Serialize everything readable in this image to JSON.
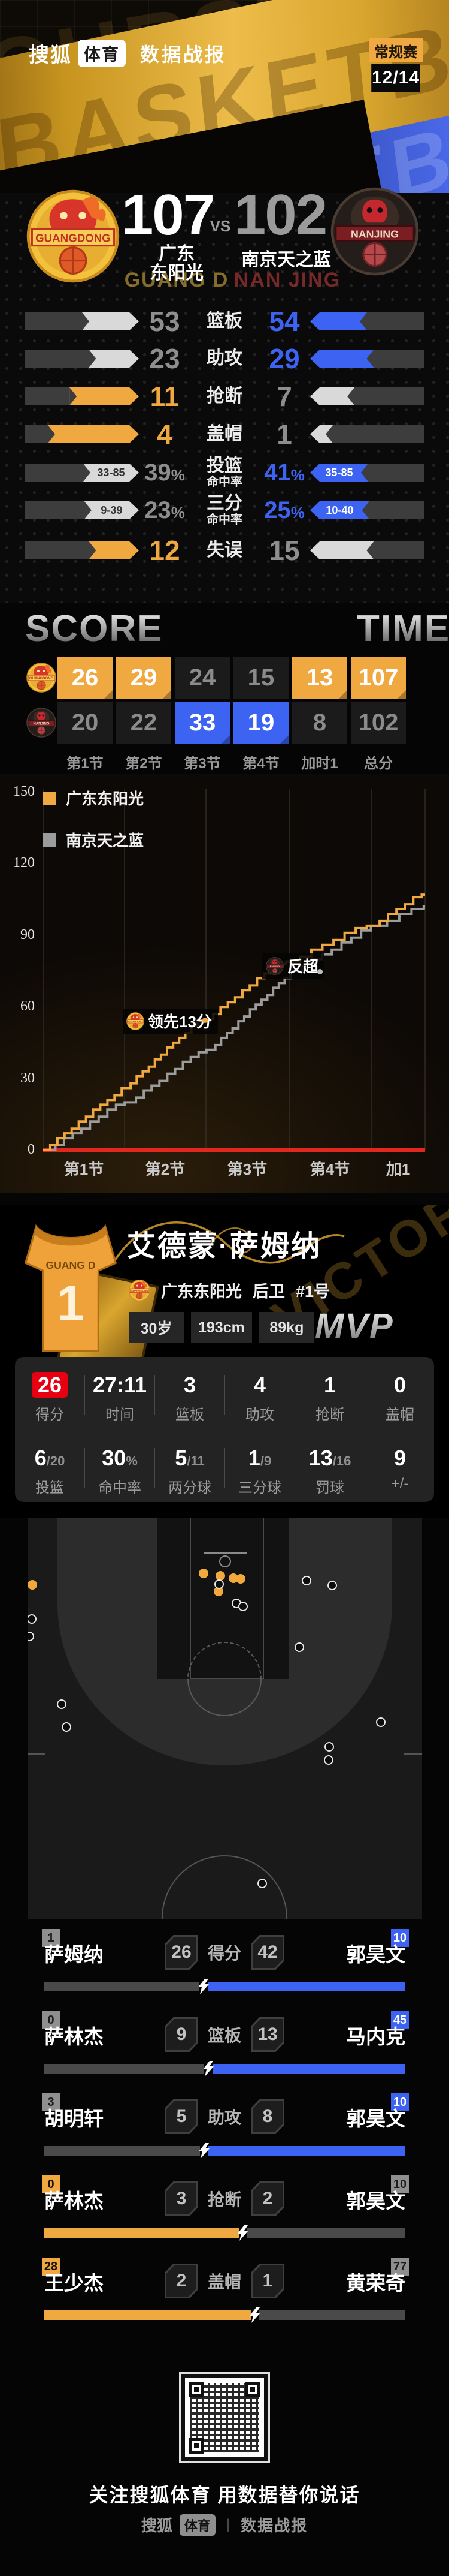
{
  "header": {
    "brand": "搜狐",
    "brand_badge": "体育",
    "title": "数据战报",
    "season_badge": "常规赛",
    "date": "12/14",
    "ribbon_text": "BASKETBALL",
    "ribbon_text_top": "OURSKETB",
    "ribbon_text_blue": "KETBALL"
  },
  "scoreboard": {
    "home": {
      "name_line1": "广东",
      "name_line2": "东阳光",
      "ghost": "GUANG D",
      "score": "107",
      "logo": "gd"
    },
    "away": {
      "name_line1": "南京天之蓝",
      "ghost": "NAN JING",
      "score": "102",
      "logo": "nj"
    },
    "vs": "VS"
  },
  "team_stats": {
    "home_color": "#F0A841",
    "away_color": "#3D63F2",
    "lose_fill": "#D9D9D9",
    "lose_text": "#8E8E8E",
    "rows": [
      {
        "label": "篮板",
        "home": "53",
        "away": "54",
        "home_num": 53,
        "away_num": 54,
        "winner": "away"
      },
      {
        "label": "助攻",
        "home": "23",
        "away": "29",
        "home_num": 23,
        "away_num": 29,
        "winner": "away"
      },
      {
        "label": "抢断",
        "home": "11",
        "away": "7",
        "home_num": 11,
        "away_num": 7,
        "winner": "home"
      },
      {
        "label": "盖帽",
        "home": "4",
        "away": "1",
        "home_num": 4,
        "away_num": 1,
        "winner": "home"
      },
      {
        "label": "投篮",
        "label2": "命中率",
        "home": "39",
        "away": "41",
        "suffix": "%",
        "home_num": 39,
        "away_num": 41,
        "home_sub": "33-85",
        "away_sub": "35-85",
        "winner": "away"
      },
      {
        "label": "三分",
        "label2": "命中率",
        "home": "23",
        "away": "25",
        "suffix": "%",
        "home_num": 23,
        "away_num": 25,
        "home_sub": "9-39",
        "away_sub": "10-40",
        "winner": "away"
      },
      {
        "label": "失误",
        "home": "12",
        "away": "15",
        "home_num": 12,
        "away_num": 15,
        "winner": "home"
      }
    ]
  },
  "quarters": {
    "score_title": "SCORE",
    "time_title": "TIME",
    "headers": [
      "第1节",
      "第2节",
      "第3节",
      "第4节",
      "加时1",
      "总分"
    ],
    "home": {
      "logo": "gd",
      "values": [
        "26",
        "29",
        "24",
        "15",
        "13",
        "107"
      ],
      "win": [
        true,
        true,
        false,
        false,
        true,
        true
      ]
    },
    "away": {
      "logo": "nj",
      "values": [
        "20",
        "22",
        "33",
        "19",
        "8",
        "102"
      ],
      "win": [
        false,
        false,
        true,
        true,
        false,
        false
      ]
    }
  },
  "chart_data": {
    "type": "line",
    "subtype": "step-cumulative-score",
    "x_categories": [
      "第1节",
      "第2节",
      "第3节",
      "第4节",
      "加1"
    ],
    "y_ticks": [
      0,
      30,
      60,
      90,
      120,
      150
    ],
    "ylim": [
      0,
      150
    ],
    "legend_position": "top-left",
    "series": [
      {
        "name": "广东东阳光",
        "color": "#F0A841",
        "cumulative_by_period": [
          0,
          26,
          55,
          79,
          94,
          107
        ]
      },
      {
        "name": "南京天之蓝",
        "color": "#9C9C9C",
        "cumulative_by_period": [
          0,
          20,
          42,
          75,
          94,
          102
        ]
      }
    ],
    "annotations": [
      {
        "text": "领先13分",
        "logo": "gd",
        "x": 205,
        "y": 392,
        "dot_x": 338,
        "dot_y": 407,
        "dot_color": "#F0A841"
      },
      {
        "text": "反超",
        "logo": "nj",
        "x": 438,
        "y": 300,
        "dot_x": 530,
        "dot_y": 326,
        "dot_color": "#bdbdbd"
      }
    ],
    "baseline_color": "#E0281E",
    "grid_color": "#3a332a"
  },
  "mvp": {
    "name": "艾德蒙·萨姆纳",
    "team": "广东东阳光",
    "position": "后卫",
    "number": "#1号",
    "tags": [
      "30岁",
      "193cm",
      "89kg"
    ],
    "badge": "MVP",
    "bg_text": "VICTORY",
    "jersey": {
      "team_text": "GUANG D",
      "number": "1"
    },
    "stats_row1": [
      {
        "value": "26",
        "label": "得分",
        "accent": true
      },
      {
        "value": "27:11",
        "label": "时间"
      },
      {
        "value": "3",
        "label": "篮板"
      },
      {
        "value": "4",
        "label": "助攻"
      },
      {
        "value": "1",
        "label": "抢断"
      },
      {
        "value": "0",
        "label": "盖帽"
      }
    ],
    "stats_row2": [
      {
        "main": "6",
        "sub": "/20",
        "label": "投篮"
      },
      {
        "main": "30",
        "sub": "%",
        "label": "命中率"
      },
      {
        "main": "5",
        "sub": "/11",
        "label": "两分球"
      },
      {
        "main": "1",
        "sub": "/9",
        "label": "三分球"
      },
      {
        "main": "13",
        "sub": "/16",
        "label": "罚球"
      },
      {
        "main": "9",
        "sub": "",
        "label": "+/-"
      }
    ]
  },
  "shot_chart": {
    "made_color": "#F2A93B",
    "made": [
      [
        8,
        111
      ],
      [
        294,
        92
      ],
      [
        322,
        96
      ],
      [
        344,
        100
      ],
      [
        356,
        101
      ],
      [
        319,
        122
      ]
    ],
    "missed": [
      [
        320,
        110
      ],
      [
        349,
        142
      ],
      [
        360,
        147
      ],
      [
        466,
        104
      ],
      [
        509,
        112
      ],
      [
        7,
        168
      ],
      [
        3,
        197
      ],
      [
        454,
        215
      ],
      [
        57,
        310
      ],
      [
        65,
        348
      ],
      [
        590,
        340
      ],
      [
        504,
        381
      ],
      [
        503,
        403
      ],
      [
        392,
        609
      ]
    ]
  },
  "duels": {
    "home_color": "#F0A841",
    "away_color": "#3D63F2",
    "lose_bar": "#4a4a4a",
    "lose_badge": "#8f8f8f",
    "rows": [
      {
        "left": {
          "name": "萨姆纳",
          "num": "1",
          "win": false
        },
        "lval": 26,
        "stat": "得分",
        "rval": 42,
        "right": {
          "name": "郭昊文",
          "num": "10",
          "win": true
        }
      },
      {
        "left": {
          "name": "萨林杰",
          "num": "0",
          "win": false
        },
        "lval": 9,
        "stat": "篮板",
        "rval": 13,
        "right": {
          "name": "马内克",
          "num": "45",
          "win": true
        }
      },
      {
        "left": {
          "name": "胡明轩",
          "num": "3",
          "win": false
        },
        "lval": 5,
        "stat": "助攻",
        "rval": 8,
        "right": {
          "name": "郭昊文",
          "num": "10",
          "win": true
        }
      },
      {
        "left": {
          "name": "萨林杰",
          "num": "0",
          "win": true
        },
        "lval": 3,
        "stat": "抢断",
        "rval": 2,
        "right": {
          "name": "郭昊文",
          "num": "10",
          "win": false
        }
      },
      {
        "left": {
          "name": "王少杰",
          "num": "28",
          "win": true
        },
        "lval": 2,
        "stat": "盖帽",
        "rval": 1,
        "right": {
          "name": "黄荣奇",
          "num": "77",
          "win": false
        }
      }
    ]
  },
  "footer": {
    "qr_caption": "关注搜狐体育 用数据替你说话",
    "brand": "搜狐",
    "brand_badge": "体育",
    "title": "数据战报"
  }
}
